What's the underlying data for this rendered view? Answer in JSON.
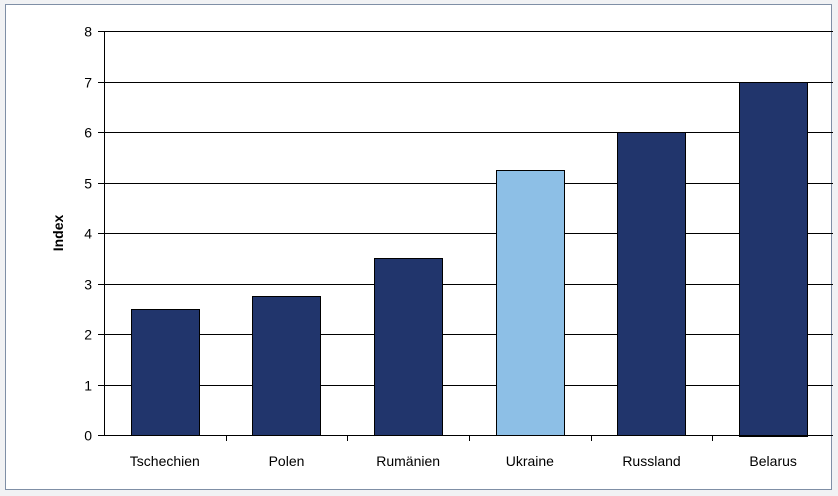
{
  "chart_data": {
    "type": "bar",
    "categories": [
      "Tschechien",
      "Polen",
      "Rumänien",
      "Ukraine",
      "Russland",
      "Belarus"
    ],
    "values": [
      2.5,
      2.75,
      3.5,
      5.25,
      6.0,
      7.0
    ],
    "ylabel": "Index",
    "xlabel": "",
    "ylim": [
      0,
      8
    ],
    "yticks": [
      0,
      1,
      2,
      3,
      4,
      5,
      6,
      7,
      8
    ],
    "grid": true,
    "colors": {
      "default_bar": "#21356c",
      "highlight_bar": "#8dbfe6",
      "highlight_category": "Ukraine"
    }
  }
}
